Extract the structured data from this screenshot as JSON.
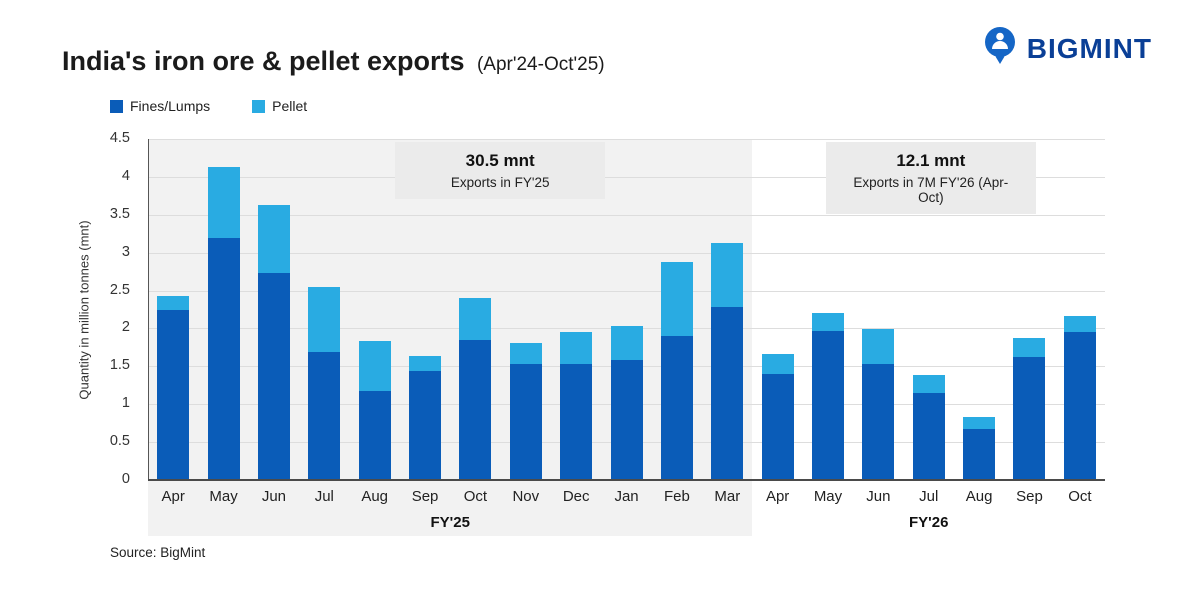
{
  "header": {
    "title": "India's iron ore & pellet exports",
    "subtitle": "(Apr'24-Oct'25)",
    "brand": "BIGMINT",
    "brand_color": "#0a3f96",
    "logo_color": "#1566c6"
  },
  "legend": [
    {
      "label": "Fines/Lumps",
      "color": "#0a5cb8"
    },
    {
      "label": "Pellet",
      "color": "#29abe2"
    }
  ],
  "annotations": [
    {
      "value": "30.5 mnt",
      "caption": "Exports in FY'25"
    },
    {
      "value": "12.1 mnt",
      "caption": "Exports in 7M FY'26 (Apr-Oct)"
    }
  ],
  "source": "Source: BigMint",
  "chart_data": {
    "type": "bar",
    "stacked": true,
    "ylabel": "Quantity in million tonnes (mnt)",
    "ylim": [
      0,
      4.5
    ],
    "ytick_step": 0.5,
    "grid": true,
    "legend_position": "top-left",
    "groups": [
      {
        "label": "FY'25",
        "shaded": true,
        "categories": [
          "Apr",
          "May",
          "Jun",
          "Jul",
          "Aug",
          "Sep",
          "Oct",
          "Nov",
          "Dec",
          "Jan",
          "Feb",
          "Mar"
        ],
        "series": [
          {
            "name": "Fines/Lumps",
            "values": [
              2.25,
              3.19,
              2.73,
              1.69,
              1.17,
              1.44,
              1.85,
              1.53,
              1.53,
              1.58,
              1.9,
              2.28
            ]
          },
          {
            "name": "Pellet",
            "values": [
              0.18,
              0.94,
              0.9,
              0.86,
              0.66,
              0.2,
              0.55,
              0.28,
              0.42,
              0.45,
              0.98,
              0.85
            ]
          }
        ]
      },
      {
        "label": "FY'26",
        "shaded": false,
        "categories": [
          "Apr",
          "May",
          "Jun",
          "Jul",
          "Aug",
          "Sep",
          "Oct"
        ],
        "series": [
          {
            "name": "Fines/Lumps",
            "values": [
              1.4,
              1.97,
              1.53,
              1.15,
              0.67,
              1.62,
              1.95
            ]
          },
          {
            "name": "Pellet",
            "values": [
              0.26,
              0.23,
              0.46,
              0.24,
              0.16,
              0.25,
              0.21
            ]
          }
        ]
      }
    ]
  }
}
